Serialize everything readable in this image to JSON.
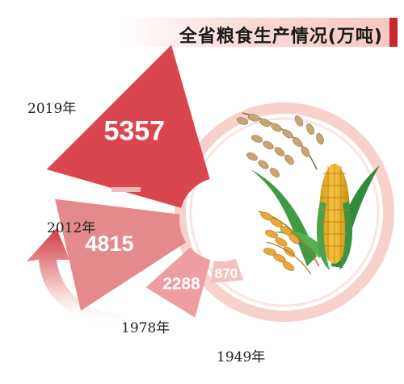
{
  "title": "全省粮食生产情况(万吨)",
  "colors": {
    "bar_2019": "#d9464e",
    "bar_2012": "#e58a8c",
    "bar_1978": "#ee9da0",
    "bar_1949": "#f3c1c1",
    "ring_outer": "#f6c8c4",
    "ring_inner": "#ffffff",
    "arrow_light": "#f6d4d2",
    "arrow_dark": "#d23a42",
    "title_accent": "#c9282e"
  },
  "chart_data": {
    "type": "bar",
    "categories": [
      "2019年",
      "2012年",
      "1978年",
      "1949年"
    ],
    "values": [
      5357,
      4815,
      2288,
      870
    ],
    "value_labels": [
      "5357",
      "4815",
      "2288",
      "870"
    ],
    "title": "全省粮食生产情况(万吨)"
  }
}
